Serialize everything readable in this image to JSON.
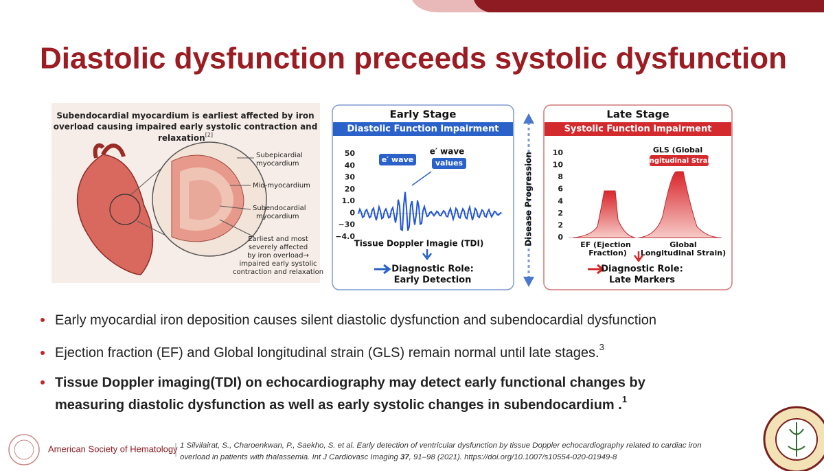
{
  "header": {
    "title": "Diastolic dysfunction preceeds systolic dysfunction"
  },
  "figure": {
    "anatomy": {
      "caption": [
        "Subendocardial myocardium is earliest affected by iron",
        "overload causing impaired early systolic contraction and",
        "relaxation"
      ],
      "caption_ref": "[2]",
      "labels": [
        [
          "Subepicardial",
          "myocardium"
        ],
        [
          "Mid-myocardium"
        ],
        [
          "Subendocardial",
          "myocardium"
        ],
        [
          "Earliest and most",
          "severely affected",
          "by iron overload→",
          "impaired early systolic",
          "contraction and relaxation"
        ]
      ]
    },
    "early": {
      "title": "Early Stage",
      "banner": "Diastolic Function Impairment",
      "axis_labels": [
        "50",
        "40",
        "30",
        "20",
        "1.0",
        "0",
        "−30",
        "−4.0"
      ],
      "callout_wave": "e′ wave",
      "callout_values": [
        "e′ wave",
        "values"
      ],
      "x_label": "Tissue Doppler Imagie (TDI)",
      "role": [
        "Diagnostic Role:",
        "Early Detection"
      ]
    },
    "progression": "Disease Progression",
    "late": {
      "title": "Late Stage",
      "banner": "Systolic Function Impairment",
      "axis_labels": [
        "10",
        "10",
        "8",
        "6",
        "4",
        "2",
        "2",
        "0"
      ],
      "callout": [
        "GLS (Global",
        "Longitudinal Strain)"
      ],
      "x_labels": [
        [
          "EF (Ejection",
          "Fraction)"
        ],
        [
          "Global",
          "Longitudinal Strain)"
        ]
      ],
      "role": [
        "Diagnostic Role:",
        "Late Markers"
      ]
    }
  },
  "bullets": [
    {
      "lines": [
        "Early myocardial iron deposition causes silent diastolic dysfunction and subendocardial dysfunction"
      ]
    },
    {
      "lines": [
        "Ejection fraction (EF) and Global longitudinal strain (GLS) remain normal until late stages."
      ],
      "ref": "3"
    },
    {
      "lines": [
        "Tissue Doppler imaging(TDI)  on echocardiography may detect early functional changes by",
        "measuring diastolic dysfunction as well as early systolic changes in subendocardium ."
      ],
      "ref": "1"
    }
  ],
  "footer": {
    "organization": "American Society of Hematology",
    "reference": [
      "1 Silvilairat, S., Charoenkwan, P., Saekho, S. et al. Early detection of ventricular dysfunction by tissue Doppler echocardiography related to cardiac iron",
      "overload in patients with thalassemia. Int J Cardiovasc Imaging ",
      "37",
      ", 91–98 (2021). https://doi.org/10.1007/s10554-020-01949-8"
    ]
  }
}
